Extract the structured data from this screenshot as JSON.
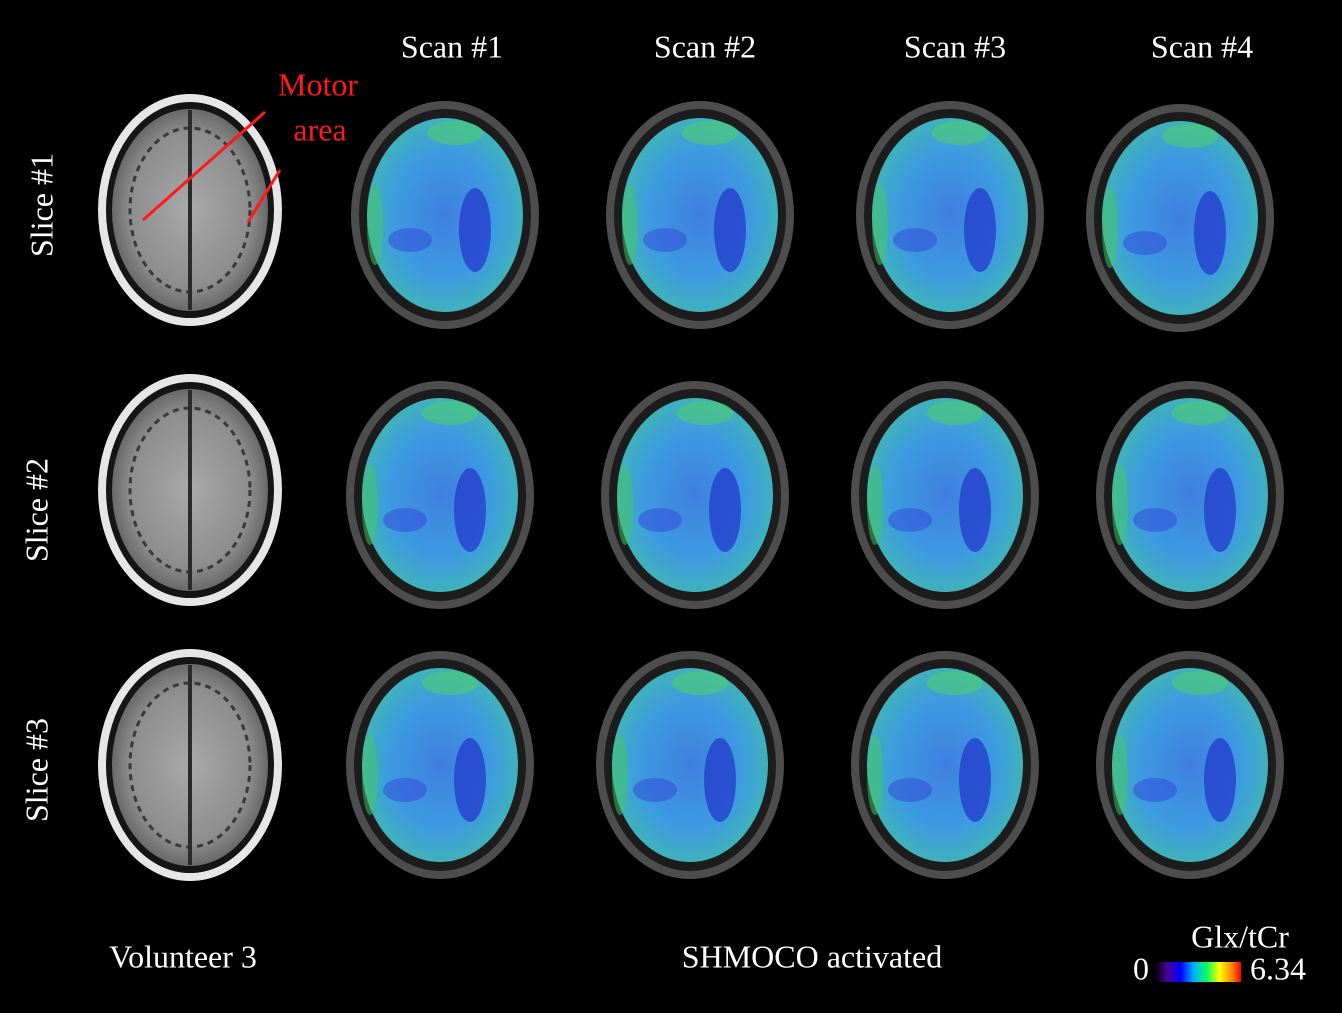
{
  "columns": [
    "Scan #1",
    "Scan #2",
    "Scan #3",
    "Scan #4"
  ],
  "rows": [
    "Slice #1",
    "Slice #2",
    "Slice #3"
  ],
  "annotation": {
    "line1": "Motor",
    "line2": "area"
  },
  "footer": {
    "subject": "Volunteer 3",
    "condition": "SHMOCO activated"
  },
  "colorbar": {
    "label": "Glx/tCr",
    "min": 0,
    "max": 6.34
  }
}
